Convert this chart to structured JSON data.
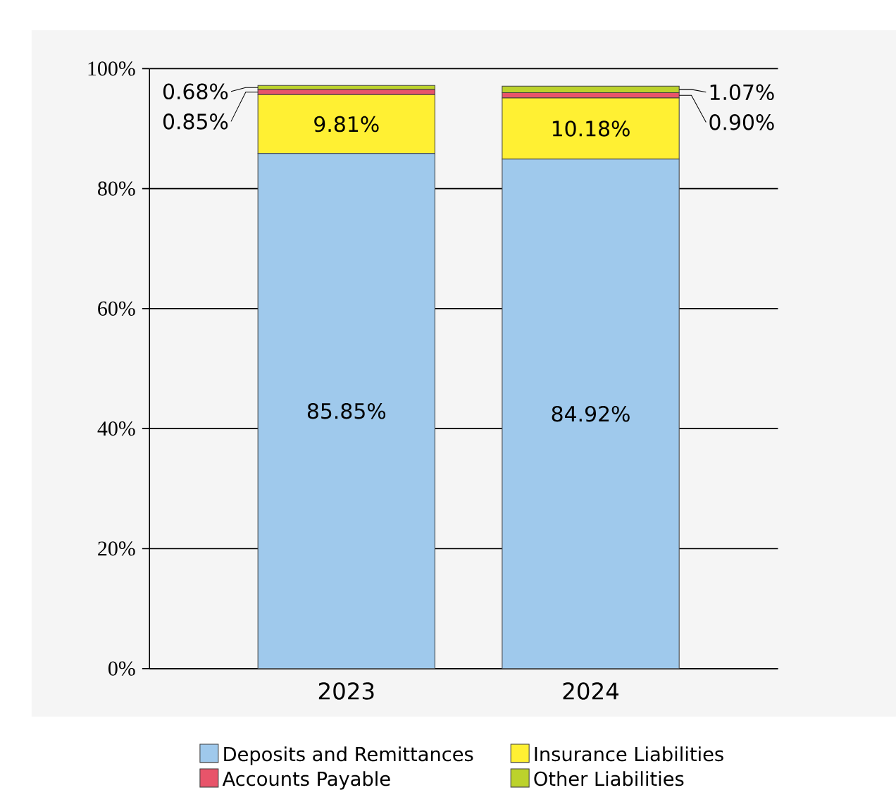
{
  "chart_data": {
    "type": "bar",
    "stacked": true,
    "categories": [
      "2023",
      "2024"
    ],
    "series": [
      {
        "name": "Deposits and Remittances",
        "color": "#9fc9ec",
        "values": [
          85.85,
          84.92
        ],
        "value_labels": [
          "85.85%",
          "84.92%"
        ]
      },
      {
        "name": "Insurance Liabilities",
        "color": "#fff033",
        "values": [
          9.81,
          10.18
        ],
        "value_labels": [
          "9.81%",
          "10.18%"
        ]
      },
      {
        "name": "Accounts Payable",
        "color": "#e8546a",
        "values": [
          0.85,
          0.9
        ],
        "value_labels": [
          "0.85%",
          "0.90%"
        ]
      },
      {
        "name": "Other Liabilities",
        "color": "#bcd22c",
        "values": [
          0.68,
          1.07
        ],
        "value_labels": [
          "0.68%",
          "1.07%"
        ]
      }
    ],
    "ylim": [
      0,
      100
    ],
    "yticks": [
      {
        "value": 0,
        "label": "0%"
      },
      {
        "value": 20,
        "label": "20%"
      },
      {
        "value": 40,
        "label": "40%"
      },
      {
        "value": 60,
        "label": "60%"
      },
      {
        "value": 80,
        "label": "80%"
      },
      {
        "value": 100,
        "label": "100%"
      }
    ],
    "grid": "y",
    "legend": "bottom"
  }
}
